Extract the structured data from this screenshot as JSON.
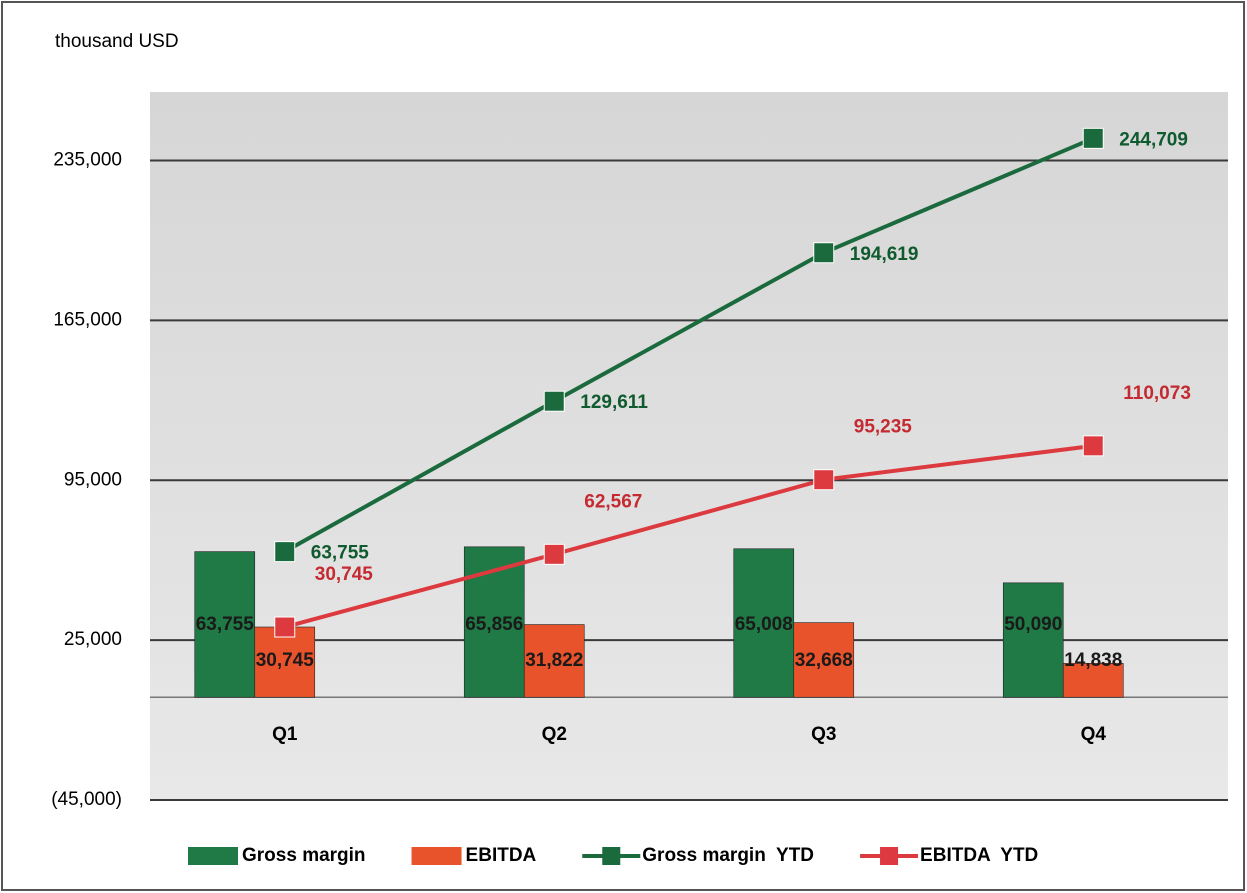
{
  "chart_data": {
    "type": "combo",
    "y_axis_label": "thousand USD",
    "categories": [
      "Q1",
      "Q2",
      "Q3",
      "Q4"
    ],
    "series": [
      {
        "name": "Gross margin",
        "type": "bar",
        "color": "#1f7a46",
        "values": [
          63755,
          65856,
          65008,
          50090
        ],
        "value_labels": [
          "63,755",
          "65,856",
          "65,008",
          "50,090"
        ]
      },
      {
        "name": "EBITDA",
        "type": "bar",
        "color": "#e8532b",
        "values": [
          30745,
          31822,
          32668,
          14838
        ],
        "value_labels": [
          "30,745",
          "31,822",
          "32,668",
          "14,838"
        ]
      },
      {
        "name": "Gross margin  YTD",
        "type": "line",
        "color": "#1b6a3d",
        "label_color": "#0f5a2e",
        "values": [
          63755,
          129611,
          194619,
          244709
        ],
        "value_labels": [
          "63,755",
          "129,611",
          "194,619",
          "244,709"
        ]
      },
      {
        "name": "EBITDA  YTD",
        "type": "line",
        "color": "#dc3a3f",
        "label_color": "#c42a2f",
        "values": [
          30745,
          62567,
          95235,
          110073
        ],
        "value_labels": [
          "30,745",
          "62,567",
          "95,235",
          "110,073"
        ]
      }
    ],
    "ylim": [
      -45000,
      265000
    ],
    "yticks": [
      {
        "value": -45000,
        "label": "(45,000)"
      },
      {
        "value": 25000,
        "label": "25,000"
      },
      {
        "value": 95000,
        "label": "95,000"
      },
      {
        "value": 165000,
        "label": "165,000"
      },
      {
        "value": 235000,
        "label": "235,000"
      }
    ],
    "grid": true,
    "legend": "bottom"
  }
}
